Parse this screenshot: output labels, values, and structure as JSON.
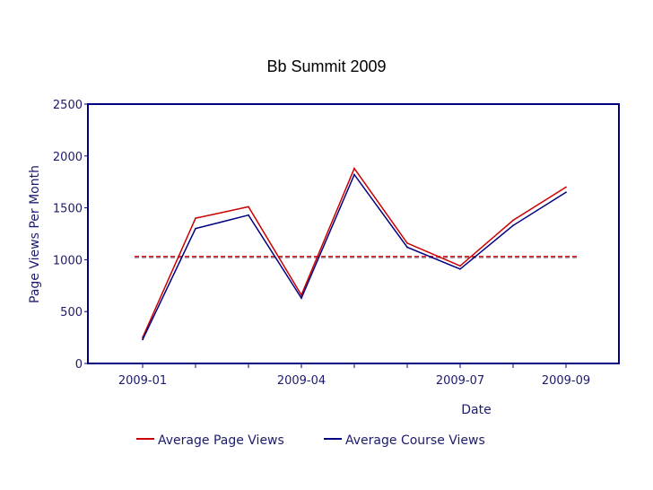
{
  "slide": {
    "title": "Bb Summit 2009"
  },
  "chart_data": {
    "type": "line",
    "title": "",
    "xlabel": "Date",
    "ylabel": "Page Views Per Month",
    "ylim": [
      0,
      2500
    ],
    "yticks": [
      "0",
      "500",
      "1000",
      "1500",
      "2000",
      "2500"
    ],
    "x": [
      "2009-01",
      "2009-02",
      "2009-03",
      "2009-04",
      "2009-05",
      "2009-06",
      "2009-07",
      "2009-08",
      "2009-09"
    ],
    "xtick_labels": [
      "2009-01",
      "2009-04",
      "2009-07",
      "2009-09"
    ],
    "grid": false,
    "legend_position": "bottom",
    "series": [
      {
        "name": "Average Page Views",
        "color": "#cc0000",
        "values": [
          250,
          1400,
          1510,
          660,
          1880,
          1160,
          940,
          1380,
          1700
        ]
      },
      {
        "name": "Average Course Views",
        "color": "#000080",
        "values": [
          230,
          1300,
          1430,
          630,
          1820,
          1120,
          910,
          1330,
          1650
        ]
      }
    ],
    "reference_lines": [
      {
        "value": 1030,
        "color": "#cc0000",
        "style": "dashed"
      },
      {
        "value": 1020,
        "color": "#9999aa",
        "style": "dashed"
      }
    ],
    "frame_color": "#000080",
    "text_color": "#1b1b6e"
  }
}
